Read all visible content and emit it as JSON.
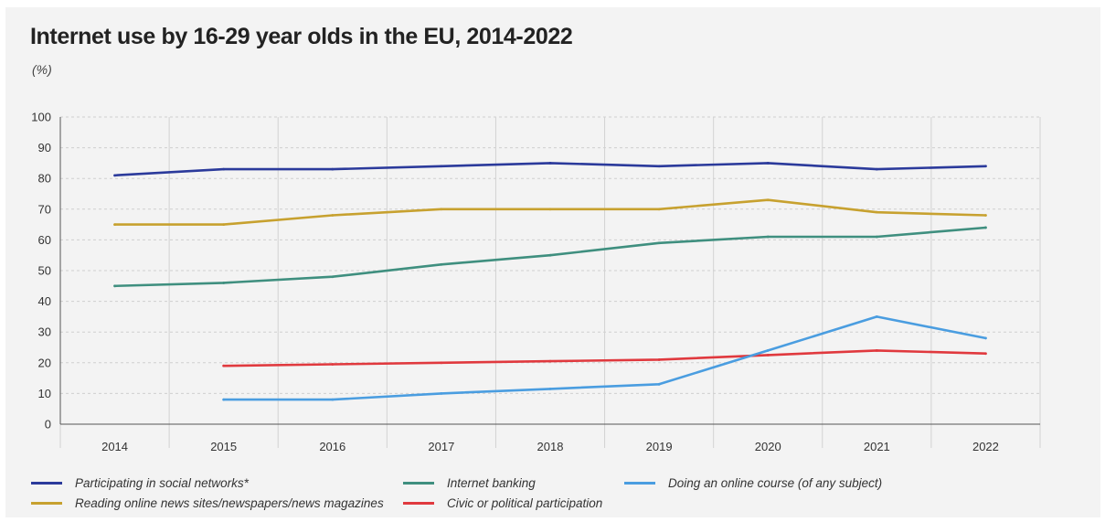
{
  "title": "Internet use by 16-29 year olds in the EU, 2014-2022",
  "unit_label": "(%)",
  "chart_data": {
    "type": "line",
    "title": "Internet use by 16-29 year olds in the EU, 2014-2022",
    "xlabel": "",
    "ylabel": "(%)",
    "x": [
      "2014",
      "2015",
      "2016",
      "2017",
      "2018",
      "2019",
      "2020",
      "2021",
      "2022"
    ],
    "ylim": [
      0,
      100
    ],
    "yticks": [
      0,
      10,
      20,
      30,
      40,
      50,
      60,
      70,
      80,
      90,
      100
    ],
    "grid": true,
    "legend_position": "bottom",
    "series": [
      {
        "name": "Participating in social networks*",
        "color": "#2b3a9b",
        "values": [
          81,
          83,
          83,
          84,
          85,
          84,
          85,
          83,
          84
        ]
      },
      {
        "name": "Reading online news sites/newspapers/news magazines",
        "color": "#c7a12f",
        "values": [
          65,
          65,
          68,
          70,
          70,
          70,
          73,
          69,
          68
        ]
      },
      {
        "name": "Internet banking",
        "color": "#3f8f7f",
        "values": [
          45,
          46,
          48,
          52,
          55,
          59,
          61,
          61,
          64
        ]
      },
      {
        "name": "Civic or political participation",
        "color": "#e0393e",
        "values": [
          null,
          19,
          19.5,
          20,
          20.5,
          21,
          22.5,
          24,
          23
        ]
      },
      {
        "name": "Doing an online course (of any subject)",
        "color": "#4a9de0",
        "values": [
          null,
          8,
          8,
          10,
          11.5,
          13,
          24,
          35,
          28
        ]
      }
    ]
  }
}
